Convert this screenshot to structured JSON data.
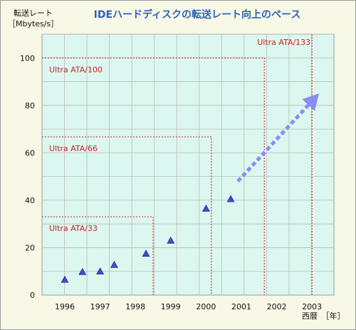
{
  "chart_data": {
    "type": "scatter",
    "title": "IDEハードディスクの転送レート向上のペース",
    "ylabel_line1": "転送レート",
    "ylabel_line2": "［Mbytes/s］",
    "xlabel": "西暦　［年］",
    "x_ticks": [
      "1996",
      "1997",
      "1998",
      "1999",
      "2000",
      "2001",
      "2002",
      "2003"
    ],
    "y_ticks": [
      "0",
      "20",
      "40",
      "60",
      "80",
      "100"
    ],
    "ylim": [
      0,
      110
    ],
    "grid": true,
    "marker_color": "#4b45c8",
    "points": [
      {
        "x": 1996.0,
        "y": 6.5
      },
      {
        "x": 1996.5,
        "y": 9.8
      },
      {
        "x": 1997.0,
        "y": 10.0
      },
      {
        "x": 1997.4,
        "y": 12.8
      },
      {
        "x": 1998.3,
        "y": 17.5
      },
      {
        "x": 1999.0,
        "y": 23.0
      },
      {
        "x": 2000.0,
        "y": 36.5
      },
      {
        "x": 2000.7,
        "y": 40.5
      }
    ],
    "trend_arrow": {
      "from": [
        2000.9,
        48
      ],
      "to": [
        2003.2,
        85
      ],
      "color": "#8a8cf2"
    },
    "standards": [
      {
        "label": "Ultra ATA/33",
        "value": 33,
        "year": 1998.5
      },
      {
        "label": "Ultra ATA/66",
        "value": 66.7,
        "year": 2000.15
      },
      {
        "label": "Ultra ATA/100",
        "value": 100,
        "year": 2001.65
      },
      {
        "label": "Ultra ATA/133",
        "value": 133,
        "year": 2003.0
      }
    ],
    "colors": {
      "plot_bg": "#dbf7ef",
      "grid": "#b9bdb5",
      "standard_line": "#d63a3a",
      "title": "#2f62b7"
    }
  }
}
